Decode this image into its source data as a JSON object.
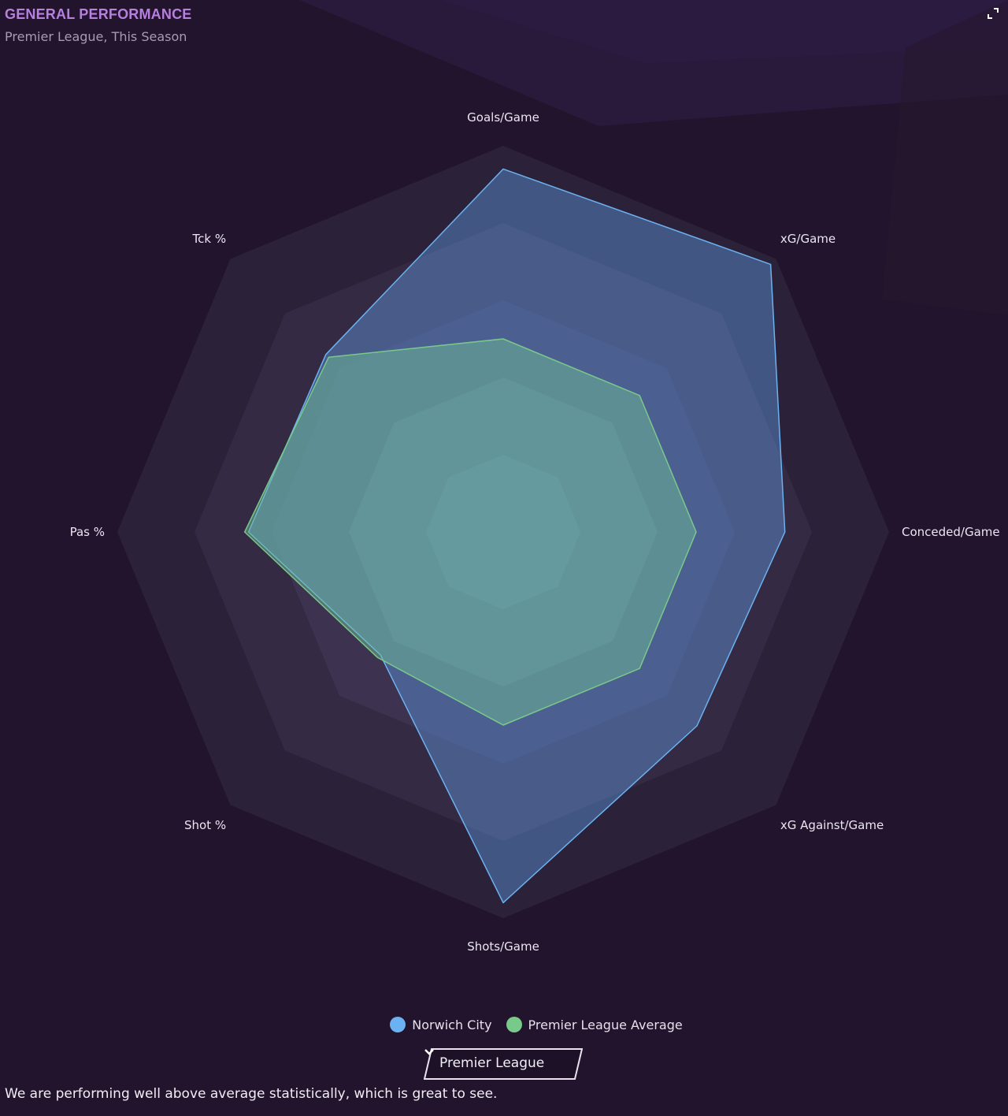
{
  "panel": {
    "title": "GENERAL PERFORMANCE",
    "subtitle": "Premier League, This Season",
    "expand_icon": "expand-icon"
  },
  "chart_data": {
    "type": "radar",
    "axes": [
      "Goals/Game",
      "xG/Game",
      "Conceded/Game",
      "xG Against/Game",
      "Shots/Game",
      "Shot %",
      "Pas %",
      "Tck %"
    ],
    "scale": [
      0,
      1
    ],
    "rings": 5,
    "series": [
      {
        "name": "Norwich City",
        "color": "#6ab2f2",
        "values": [
          0.94,
          0.98,
          0.73,
          0.71,
          0.96,
          0.45,
          0.66,
          0.65
        ]
      },
      {
        "name": "Premier League Average",
        "color": "#79c98a",
        "values": [
          0.5,
          0.5,
          0.5,
          0.5,
          0.5,
          0.46,
          0.67,
          0.64
        ]
      }
    ]
  },
  "legend": {
    "items": [
      {
        "label": "Norwich City",
        "color": "#6ab2f2"
      },
      {
        "label": "Premier League Average",
        "color": "#79c98a"
      }
    ]
  },
  "dropdown": {
    "selected": "Premier League"
  },
  "summary": "We are performing well above average statistically, which is great to see."
}
